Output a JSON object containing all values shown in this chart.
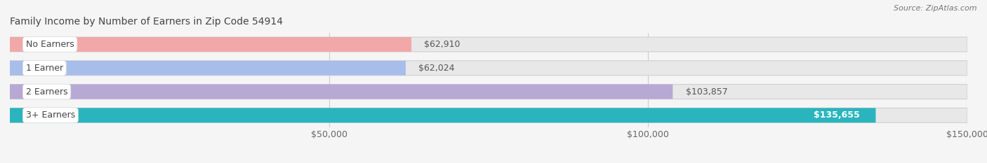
{
  "title": "Family Income by Number of Earners in Zip Code 54914",
  "source": "Source: ZipAtlas.com",
  "categories": [
    "No Earners",
    "1 Earner",
    "2 Earners",
    "3+ Earners"
  ],
  "values": [
    62910,
    62024,
    103857,
    135655
  ],
  "bar_colors": [
    "#f2a8a8",
    "#a8beea",
    "#b8a8d4",
    "#2ab4be"
  ],
  "value_labels": [
    "$62,910",
    "$62,024",
    "$103,857",
    "$135,655"
  ],
  "value_inside": [
    false,
    false,
    false,
    true
  ],
  "xmin": 0,
  "xmax": 150000,
  "xticks": [
    50000,
    100000,
    150000
  ],
  "xtick_labels": [
    "$50,000",
    "$100,000",
    "$150,000"
  ],
  "background_color": "#f5f5f5",
  "bar_background": "#e8e8e8",
  "title_fontsize": 10,
  "source_fontsize": 8,
  "bar_label_fontsize": 9,
  "value_fontsize": 9,
  "tick_fontsize": 9,
  "bar_height": 0.62,
  "bar_gap": 0.38
}
